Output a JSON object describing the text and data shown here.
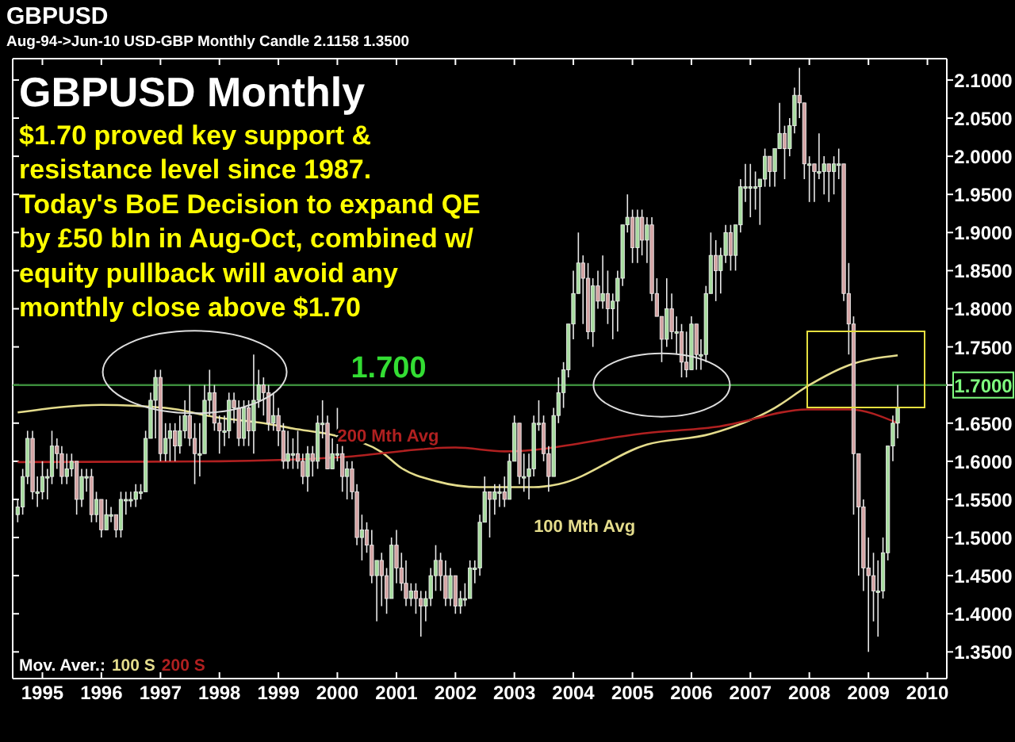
{
  "chart_data": {
    "type": "candlestick",
    "title": "GBPUSD",
    "subtitle": "Aug-94->Jun-10 USD-GBP Monthly Candle 2.1158 1.3500",
    "annotations": [
      "GBPUSD Monthly",
      "$1.70 proved key support &",
      "resistance level since 1987.",
      "Today's BoE Decision to expand QE",
      "by £50 bln in Aug-Oct, combined w/",
      "equity pullback will avoid any",
      "monthly close above $1.70",
      "Mov. Aver.:",
      "100 S",
      "200 S"
    ],
    "xlim": [
      "1994-07",
      "2010-05"
    ],
    "ylim": [
      1.315,
      2.128
    ],
    "xticks": [
      "1995",
      "1996",
      "1997",
      "1998",
      "1999",
      "2000",
      "2001",
      "2002",
      "2003",
      "2004",
      "2005",
      "2006",
      "2007",
      "2008",
      "2009",
      "2010"
    ],
    "yticks": [
      {
        "value": 1.35,
        "label": "1.3500"
      },
      {
        "value": 1.4,
        "label": "1.4000"
      },
      {
        "value": 1.45,
        "label": "1.4500"
      },
      {
        "value": 1.5,
        "label": "1.5000"
      },
      {
        "value": 1.55,
        "label": "1.5500"
      },
      {
        "value": 1.6,
        "label": "1.6000"
      },
      {
        "value": 1.65,
        "label": "1.6500"
      },
      {
        "value": 1.7,
        "label": "1.7000"
      },
      {
        "value": 1.75,
        "label": "1.7500"
      },
      {
        "value": 1.8,
        "label": "1.8000"
      },
      {
        "value": 1.85,
        "label": "1.8500"
      },
      {
        "value": 1.9,
        "label": "1.9000"
      },
      {
        "value": 1.95,
        "label": "1.9500"
      },
      {
        "value": 2.0,
        "label": "2.0000"
      },
      {
        "value": 2.05,
        "label": "2.0500"
      },
      {
        "value": 2.1,
        "label": "2.1000"
      }
    ],
    "ref_lines": [
      {
        "axis": "y",
        "value": 1.7,
        "label": "1.700",
        "color": "#3c8c3c"
      }
    ],
    "x": [
      "1994-08",
      "1994-09",
      "1994-10",
      "1994-11",
      "1994-12",
      "1995-01",
      "1995-02",
      "1995-03",
      "1995-04",
      "1995-05",
      "1995-06",
      "1995-07",
      "1995-08",
      "1995-09",
      "1995-10",
      "1995-11",
      "1995-12",
      "1996-01",
      "1996-02",
      "1996-03",
      "1996-04",
      "1996-05",
      "1996-06",
      "1996-07",
      "1996-08",
      "1996-09",
      "1996-10",
      "1996-11",
      "1996-12",
      "1997-01",
      "1997-02",
      "1997-03",
      "1997-04",
      "1997-05",
      "1997-06",
      "1997-07",
      "1997-08",
      "1997-09",
      "1997-10",
      "1997-11",
      "1997-12",
      "1998-01",
      "1998-02",
      "1998-03",
      "1998-04",
      "1998-05",
      "1998-06",
      "1998-07",
      "1998-08",
      "1998-09",
      "1998-10",
      "1998-11",
      "1998-12",
      "1999-01",
      "1999-02",
      "1999-03",
      "1999-04",
      "1999-05",
      "1999-06",
      "1999-07",
      "1999-08",
      "1999-09",
      "1999-10",
      "1999-11",
      "1999-12",
      "2000-01",
      "2000-02",
      "2000-03",
      "2000-04",
      "2000-05",
      "2000-06",
      "2000-07",
      "2000-08",
      "2000-09",
      "2000-10",
      "2000-11",
      "2000-12",
      "2001-01",
      "2001-02",
      "2001-03",
      "2001-04",
      "2001-05",
      "2001-06",
      "2001-07",
      "2001-08",
      "2001-09",
      "2001-10",
      "2001-11",
      "2001-12",
      "2002-01",
      "2002-02",
      "2002-03",
      "2002-04",
      "2002-05",
      "2002-06",
      "2002-07",
      "2002-08",
      "2002-09",
      "2002-10",
      "2002-11",
      "2002-12",
      "2003-01",
      "2003-02",
      "2003-03",
      "2003-04",
      "2003-05",
      "2003-06",
      "2003-07",
      "2003-08",
      "2003-09",
      "2003-10",
      "2003-11",
      "2003-12",
      "2004-01",
      "2004-02",
      "2004-03",
      "2004-04",
      "2004-05",
      "2004-06",
      "2004-07",
      "2004-08",
      "2004-09",
      "2004-10",
      "2004-11",
      "2004-12",
      "2005-01",
      "2005-02",
      "2005-03",
      "2005-04",
      "2005-05",
      "2005-06",
      "2005-07",
      "2005-08",
      "2005-09",
      "2005-10",
      "2005-11",
      "2005-12",
      "2006-01",
      "2006-02",
      "2006-03",
      "2006-04",
      "2006-05",
      "2006-06",
      "2006-07",
      "2006-08",
      "2006-09",
      "2006-10",
      "2006-11",
      "2006-12",
      "2007-01",
      "2007-02",
      "2007-03",
      "2007-04",
      "2007-05",
      "2007-06",
      "2007-07",
      "2007-08",
      "2007-09",
      "2007-10",
      "2007-11",
      "2007-12",
      "2008-01",
      "2008-02",
      "2008-03",
      "2008-04",
      "2008-05",
      "2008-06",
      "2008-07",
      "2008-08",
      "2008-09",
      "2008-10",
      "2008-11",
      "2008-12",
      "2009-01",
      "2009-02",
      "2009-03",
      "2009-04",
      "2009-05",
      "2009-06",
      "2009-07"
    ],
    "ohlc": [
      [
        1.53,
        1.55,
        1.52,
        1.54
      ],
      [
        1.54,
        1.59,
        1.53,
        1.58
      ],
      [
        1.58,
        1.64,
        1.57,
        1.63
      ],
      [
        1.63,
        1.64,
        1.55,
        1.56
      ],
      [
        1.56,
        1.58,
        1.54,
        1.56
      ],
      [
        1.56,
        1.6,
        1.55,
        1.58
      ],
      [
        1.58,
        1.59,
        1.55,
        1.58
      ],
      [
        1.58,
        1.64,
        1.57,
        1.62
      ],
      [
        1.62,
        1.63,
        1.59,
        1.61
      ],
      [
        1.61,
        1.62,
        1.57,
        1.58
      ],
      [
        1.58,
        1.61,
        1.57,
        1.59
      ],
      [
        1.59,
        1.61,
        1.58,
        1.6
      ],
      [
        1.6,
        1.6,
        1.53,
        1.55
      ],
      [
        1.55,
        1.59,
        1.54,
        1.58
      ],
      [
        1.58,
        1.59,
        1.56,
        1.58
      ],
      [
        1.58,
        1.59,
        1.52,
        1.53
      ],
      [
        1.53,
        1.56,
        1.52,
        1.55
      ],
      [
        1.55,
        1.55,
        1.5,
        1.51
      ],
      [
        1.51,
        1.55,
        1.51,
        1.53
      ],
      [
        1.53,
        1.54,
        1.52,
        1.53
      ],
      [
        1.53,
        1.53,
        1.5,
        1.51
      ],
      [
        1.51,
        1.56,
        1.5,
        1.55
      ],
      [
        1.55,
        1.56,
        1.53,
        1.55
      ],
      [
        1.55,
        1.56,
        1.54,
        1.55
      ],
      [
        1.55,
        1.57,
        1.54,
        1.56
      ],
      [
        1.56,
        1.57,
        1.55,
        1.56
      ],
      [
        1.56,
        1.64,
        1.56,
        1.63
      ],
      [
        1.63,
        1.69,
        1.63,
        1.68
      ],
      [
        1.68,
        1.72,
        1.63,
        1.71
      ],
      [
        1.71,
        1.72,
        1.6,
        1.61
      ],
      [
        1.61,
        1.65,
        1.6,
        1.63
      ],
      [
        1.63,
        1.65,
        1.6,
        1.64
      ],
      [
        1.64,
        1.65,
        1.6,
        1.62
      ],
      [
        1.62,
        1.66,
        1.61,
        1.64
      ],
      [
        1.64,
        1.68,
        1.63,
        1.66
      ],
      [
        1.66,
        1.7,
        1.62,
        1.63
      ],
      [
        1.63,
        1.65,
        1.57,
        1.61
      ],
      [
        1.61,
        1.65,
        1.58,
        1.61
      ],
      [
        1.61,
        1.7,
        1.61,
        1.68
      ],
      [
        1.68,
        1.72,
        1.66,
        1.69
      ],
      [
        1.69,
        1.7,
        1.64,
        1.65
      ],
      [
        1.65,
        1.66,
        1.61,
        1.64
      ],
      [
        1.64,
        1.66,
        1.62,
        1.64
      ],
      [
        1.64,
        1.69,
        1.63,
        1.68
      ],
      [
        1.68,
        1.69,
        1.65,
        1.67
      ],
      [
        1.67,
        1.68,
        1.62,
        1.63
      ],
      [
        1.63,
        1.68,
        1.62,
        1.67
      ],
      [
        1.67,
        1.68,
        1.62,
        1.64
      ],
      [
        1.64,
        1.74,
        1.61,
        1.68
      ],
      [
        1.68,
        1.72,
        1.67,
        1.7
      ],
      [
        1.7,
        1.71,
        1.66,
        1.69
      ],
      [
        1.69,
        1.7,
        1.64,
        1.65
      ],
      [
        1.65,
        1.69,
        1.64,
        1.66
      ],
      [
        1.66,
        1.67,
        1.62,
        1.64
      ],
      [
        1.64,
        1.65,
        1.59,
        1.6
      ],
      [
        1.6,
        1.64,
        1.59,
        1.61
      ],
      [
        1.61,
        1.63,
        1.59,
        1.61
      ],
      [
        1.61,
        1.64,
        1.59,
        1.6
      ],
      [
        1.6,
        1.61,
        1.57,
        1.58
      ],
      [
        1.58,
        1.62,
        1.56,
        1.61
      ],
      [
        1.61,
        1.62,
        1.58,
        1.6
      ],
      [
        1.6,
        1.66,
        1.59,
        1.65
      ],
      [
        1.65,
        1.68,
        1.63,
        1.65
      ],
      [
        1.65,
        1.66,
        1.59,
        1.59
      ],
      [
        1.59,
        1.63,
        1.59,
        1.61
      ],
      [
        1.61,
        1.67,
        1.6,
        1.61
      ],
      [
        1.61,
        1.62,
        1.56,
        1.58
      ],
      [
        1.58,
        1.6,
        1.55,
        1.59
      ],
      [
        1.59,
        1.6,
        1.55,
        1.56
      ],
      [
        1.56,
        1.57,
        1.49,
        1.5
      ],
      [
        1.5,
        1.53,
        1.47,
        1.51
      ],
      [
        1.51,
        1.52,
        1.48,
        1.49
      ],
      [
        1.49,
        1.51,
        1.44,
        1.45
      ],
      [
        1.45,
        1.47,
        1.39,
        1.47
      ],
      [
        1.47,
        1.48,
        1.41,
        1.45
      ],
      [
        1.45,
        1.46,
        1.4,
        1.42
      ],
      [
        1.42,
        1.5,
        1.42,
        1.49
      ],
      [
        1.49,
        1.51,
        1.44,
        1.46
      ],
      [
        1.46,
        1.48,
        1.43,
        1.44
      ],
      [
        1.44,
        1.47,
        1.41,
        1.42
      ],
      [
        1.42,
        1.44,
        1.41,
        1.43
      ],
      [
        1.43,
        1.44,
        1.4,
        1.42
      ],
      [
        1.42,
        1.43,
        1.37,
        1.41
      ],
      [
        1.41,
        1.43,
        1.39,
        1.42
      ],
      [
        1.42,
        1.46,
        1.41,
        1.45
      ],
      [
        1.45,
        1.49,
        1.43,
        1.47
      ],
      [
        1.47,
        1.48,
        1.43,
        1.45
      ],
      [
        1.45,
        1.47,
        1.41,
        1.42
      ],
      [
        1.42,
        1.46,
        1.41,
        1.45
      ],
      [
        1.45,
        1.45,
        1.4,
        1.41
      ],
      [
        1.41,
        1.43,
        1.4,
        1.42
      ],
      [
        1.42,
        1.44,
        1.41,
        1.42
      ],
      [
        1.42,
        1.47,
        1.42,
        1.46
      ],
      [
        1.46,
        1.47,
        1.44,
        1.46
      ],
      [
        1.46,
        1.53,
        1.45,
        1.52
      ],
      [
        1.52,
        1.58,
        1.52,
        1.56
      ],
      [
        1.56,
        1.56,
        1.5,
        1.55
      ],
      [
        1.55,
        1.57,
        1.53,
        1.56
      ],
      [
        1.56,
        1.57,
        1.54,
        1.56
      ],
      [
        1.56,
        1.58,
        1.54,
        1.55
      ],
      [
        1.55,
        1.61,
        1.55,
        1.6
      ],
      [
        1.6,
        1.66,
        1.6,
        1.65
      ],
      [
        1.65,
        1.65,
        1.57,
        1.58
      ],
      [
        1.58,
        1.61,
        1.56,
        1.58
      ],
      [
        1.58,
        1.61,
        1.55,
        1.59
      ],
      [
        1.59,
        1.66,
        1.58,
        1.65
      ],
      [
        1.65,
        1.68,
        1.64,
        1.65
      ],
      [
        1.65,
        1.66,
        1.6,
        1.61
      ],
      [
        1.61,
        1.62,
        1.56,
        1.58
      ],
      [
        1.58,
        1.67,
        1.58,
        1.66
      ],
      [
        1.66,
        1.71,
        1.65,
        1.69
      ],
      [
        1.69,
        1.73,
        1.67,
        1.72
      ],
      [
        1.72,
        1.78,
        1.71,
        1.78
      ],
      [
        1.78,
        1.85,
        1.76,
        1.82
      ],
      [
        1.82,
        1.9,
        1.82,
        1.86
      ],
      [
        1.86,
        1.87,
        1.78,
        1.84
      ],
      [
        1.84,
        1.86,
        1.76,
        1.77
      ],
      [
        1.77,
        1.84,
        1.75,
        1.83
      ],
      [
        1.83,
        1.85,
        1.8,
        1.81
      ],
      [
        1.81,
        1.87,
        1.8,
        1.82
      ],
      [
        1.82,
        1.85,
        1.78,
        1.8
      ],
      [
        1.8,
        1.82,
        1.76,
        1.81
      ],
      [
        1.81,
        1.85,
        1.77,
        1.84
      ],
      [
        1.84,
        1.91,
        1.83,
        1.91
      ],
      [
        1.91,
        1.95,
        1.9,
        1.92
      ],
      [
        1.92,
        1.93,
        1.86,
        1.88
      ],
      [
        1.88,
        1.93,
        1.86,
        1.92
      ],
      [
        1.92,
        1.93,
        1.87,
        1.89
      ],
      [
        1.89,
        1.92,
        1.86,
        1.91
      ],
      [
        1.91,
        1.92,
        1.81,
        1.82
      ],
      [
        1.82,
        1.84,
        1.79,
        1.79
      ],
      [
        1.79,
        1.79,
        1.73,
        1.76
      ],
      [
        1.76,
        1.84,
        1.75,
        1.8
      ],
      [
        1.8,
        1.82,
        1.76,
        1.77
      ],
      [
        1.77,
        1.79,
        1.74,
        1.77
      ],
      [
        1.77,
        1.78,
        1.71,
        1.73
      ],
      [
        1.73,
        1.77,
        1.71,
        1.72
      ],
      [
        1.72,
        1.79,
        1.72,
        1.78
      ],
      [
        1.78,
        1.78,
        1.72,
        1.74
      ],
      [
        1.74,
        1.76,
        1.72,
        1.74
      ],
      [
        1.74,
        1.83,
        1.73,
        1.82
      ],
      [
        1.82,
        1.9,
        1.82,
        1.87
      ],
      [
        1.87,
        1.89,
        1.81,
        1.85
      ],
      [
        1.85,
        1.88,
        1.82,
        1.87
      ],
      [
        1.87,
        1.91,
        1.86,
        1.9
      ],
      [
        1.9,
        1.91,
        1.85,
        1.87
      ],
      [
        1.87,
        1.91,
        1.85,
        1.91
      ],
      [
        1.91,
        1.97,
        1.9,
        1.96
      ],
      [
        1.96,
        1.99,
        1.94,
        1.96
      ],
      [
        1.96,
        1.99,
        1.92,
        1.96
      ],
      [
        1.96,
        1.98,
        1.93,
        1.96
      ],
      [
        1.96,
        1.97,
        1.91,
        1.97
      ],
      [
        1.97,
        2.01,
        1.96,
        2.0
      ],
      [
        2.0,
        2.0,
        1.96,
        1.98
      ],
      [
        1.98,
        2.01,
        1.96,
        2.01
      ],
      [
        2.01,
        2.07,
        2.01,
        2.03
      ],
      [
        2.03,
        2.04,
        1.97,
        2.01
      ],
      [
        2.01,
        2.05,
        2.0,
        2.04
      ],
      [
        2.04,
        2.09,
        2.03,
        2.08
      ],
      [
        2.08,
        2.116,
        2.05,
        2.07
      ],
      [
        2.07,
        2.07,
        1.97,
        1.99
      ],
      [
        1.99,
        2.0,
        1.94,
        1.99
      ],
      [
        1.99,
        1.99,
        1.94,
        1.98
      ],
      [
        1.98,
        2.03,
        1.97,
        1.98
      ],
      [
        1.98,
        2.0,
        1.95,
        1.99
      ],
      [
        1.99,
        1.99,
        1.94,
        1.98
      ],
      [
        1.98,
        2.0,
        1.95,
        1.99
      ],
      [
        1.99,
        2.01,
        1.97,
        1.99
      ],
      [
        1.99,
        1.99,
        1.81,
        1.82
      ],
      [
        1.82,
        1.86,
        1.74,
        1.78
      ],
      [
        1.78,
        1.79,
        1.53,
        1.61
      ],
      [
        1.61,
        1.61,
        1.45,
        1.54
      ],
      [
        1.54,
        1.55,
        1.43,
        1.46
      ],
      [
        1.46,
        1.5,
        1.35,
        1.45
      ],
      [
        1.45,
        1.48,
        1.39,
        1.43
      ],
      [
        1.43,
        1.47,
        1.37,
        1.43
      ],
      [
        1.43,
        1.5,
        1.42,
        1.48
      ],
      [
        1.48,
        1.62,
        1.47,
        1.62
      ],
      [
        1.62,
        1.66,
        1.6,
        1.65
      ],
      [
        1.65,
        1.7,
        1.63,
        1.67
      ]
    ],
    "series": [
      {
        "name": "100 Mth Avg",
        "type": "line",
        "color": "#e4dc8c",
        "x": [
          "1994-08",
          "1996-01",
          "1997-02",
          "1998-01",
          "1998-10",
          "1999-04",
          "2000-01",
          "2000-10",
          "2001-02",
          "2001-09",
          "2002-06",
          "2003-05",
          "2003-10",
          "2005-04",
          "2006-05",
          "2007-06",
          "2008-01",
          "2008-09",
          "2009-07"
        ],
        "values": [
          1.664,
          1.674,
          1.67,
          1.657,
          1.65,
          1.643,
          1.633,
          1.612,
          1.591,
          1.574,
          1.566,
          1.566,
          1.57,
          1.622,
          1.636,
          1.67,
          1.7,
          1.726,
          1.739
        ]
      },
      {
        "name": "200 Mth Avg",
        "type": "line",
        "color": "#b02020",
        "x": [
          "1994-08",
          "1998-01",
          "2000-01",
          "2002-01",
          "2002-11",
          "2005-04",
          "2006-06",
          "2008-01",
          "2008-09",
          "2009-07"
        ],
        "values": [
          1.599,
          1.6,
          1.605,
          1.618,
          1.613,
          1.637,
          1.645,
          1.668,
          1.668,
          1.65
        ]
      }
    ]
  }
}
